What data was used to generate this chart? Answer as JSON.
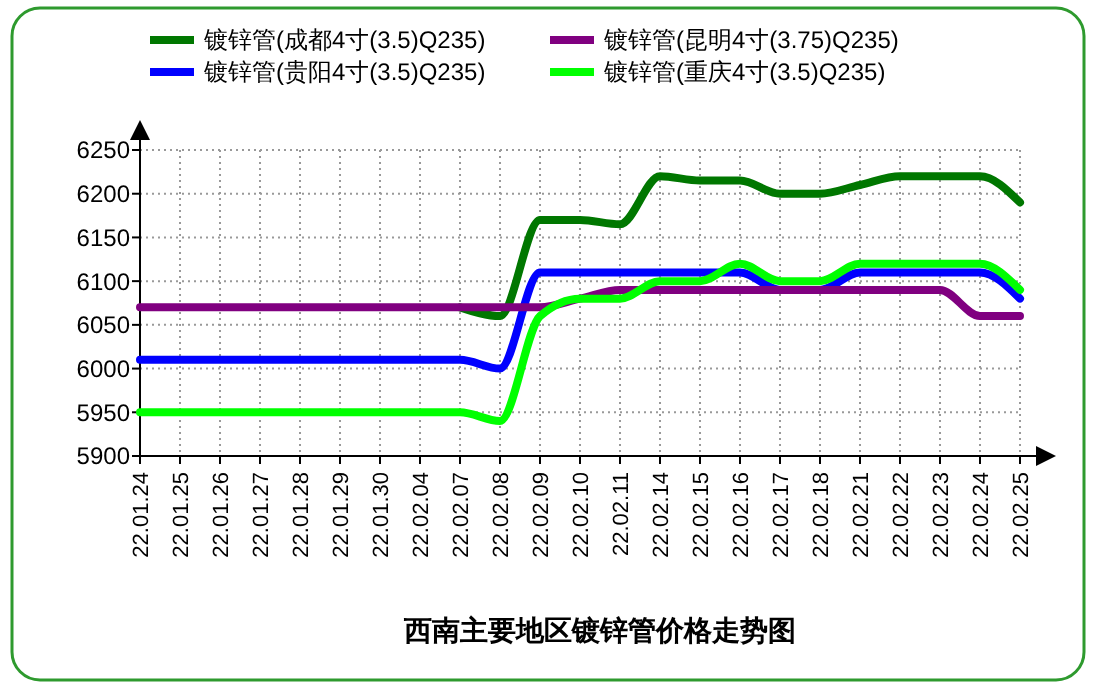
{
  "chart_data": {
    "type": "line",
    "title": "西南主要地区镀锌管价格走势图",
    "categories": [
      "22.01.24",
      "22.01.25",
      "22.01.26",
      "22.01.27",
      "22.01.28",
      "22.01.29",
      "22.01.30",
      "22.02.04",
      "22.02.07",
      "22.02.08",
      "22.02.09",
      "22.02.10",
      "22.02.11",
      "22.02.14",
      "22.02.15",
      "22.02.16",
      "22.02.17",
      "22.02.18",
      "22.02.21",
      "22.02.22",
      "22.02.23",
      "22.02.24",
      "22.02.25"
    ],
    "series": [
      {
        "name": "镀锌管(成都4寸(3.5)Q235)",
        "color": "#007700",
        "values": [
          null,
          null,
          null,
          null,
          null,
          null,
          null,
          null,
          6070,
          6060,
          6170,
          6170,
          6165,
          6220,
          6215,
          6215,
          6200,
          6200,
          6210,
          6220,
          6220,
          6220,
          6190
        ]
      },
      {
        "name": "镀锌管(贵阳4寸(3.5)Q235)",
        "color": "#0000ff",
        "values": [
          6010,
          6010,
          6010,
          6010,
          6010,
          6010,
          6010,
          6010,
          6010,
          6000,
          6110,
          6110,
          6110,
          6110,
          6110,
          6110,
          6090,
          6090,
          6110,
          6110,
          6110,
          6110,
          6080
        ]
      },
      {
        "name": "镀锌管(昆明4寸(3.75)Q235)",
        "color": "#800080",
        "values": [
          6070,
          6070,
          6070,
          6070,
          6070,
          6070,
          6070,
          6070,
          6070,
          6070,
          6070,
          6080,
          6090,
          6090,
          6090,
          6090,
          6090,
          6090,
          6090,
          6090,
          6090,
          6060,
          6060
        ]
      },
      {
        "name": "镀锌管(重庆4寸(3.5)Q235)",
        "color": "#00ff00",
        "values": [
          5950,
          5950,
          5950,
          5950,
          5950,
          5950,
          5950,
          5950,
          5950,
          5940,
          6060,
          6080,
          6080,
          6100,
          6100,
          6120,
          6100,
          6100,
          6120,
          6120,
          6120,
          6120,
          6090
        ]
      }
    ],
    "ylim": [
      5900,
      6250
    ],
    "yticks": [
      5900,
      5950,
      6000,
      6050,
      6100,
      6150,
      6200,
      6250
    ],
    "grid": true,
    "legend": "top",
    "line_style": "solid"
  }
}
